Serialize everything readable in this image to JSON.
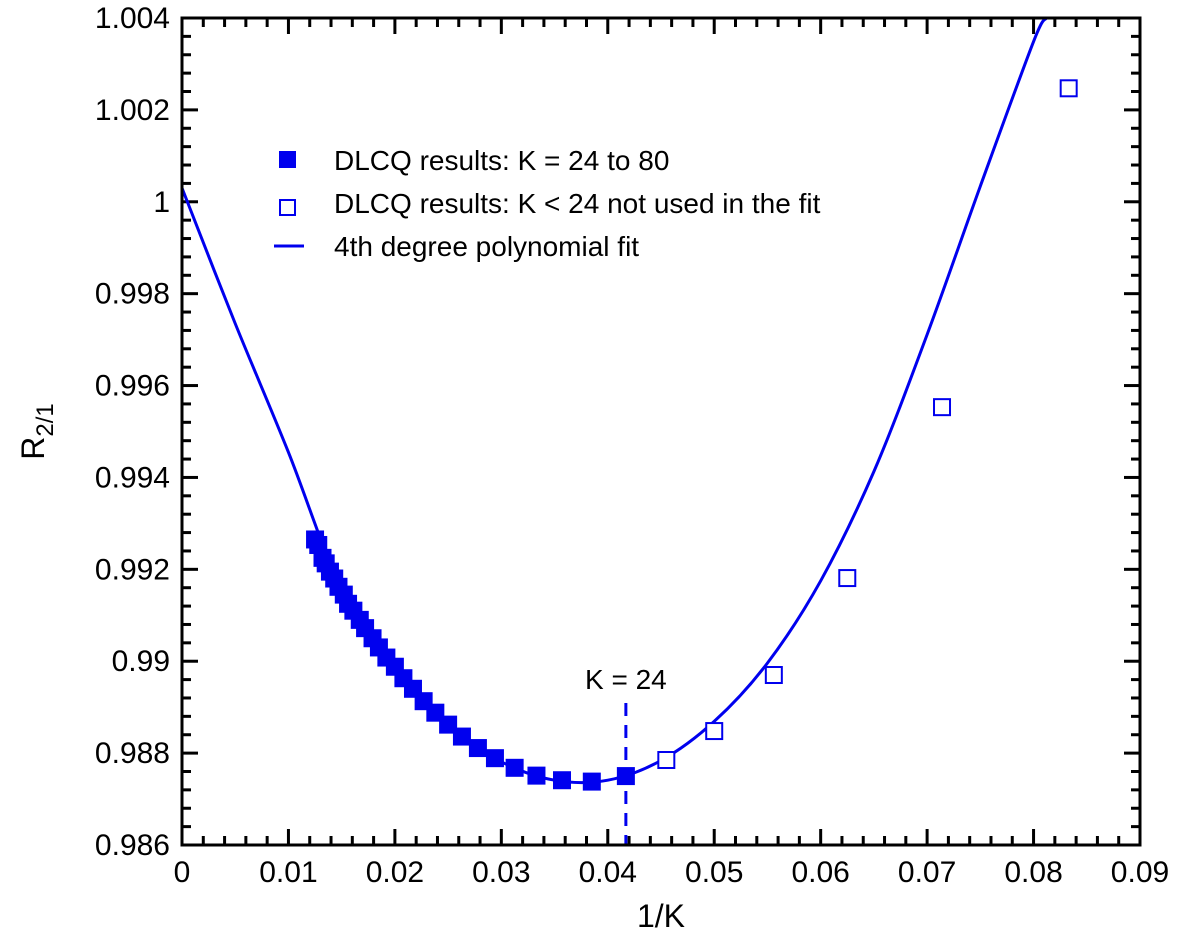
{
  "chart_data": {
    "type": "scatter",
    "xlabel": "1/K",
    "ylabel_main": "R",
    "ylabel_sub": "2/1",
    "xlim": [
      0,
      0.09
    ],
    "ylim": [
      0.986,
      1.004
    ],
    "x_ticks": [
      0,
      0.01,
      0.02,
      0.03,
      0.04,
      0.05,
      0.06,
      0.07,
      0.08,
      0.09
    ],
    "x_tick_labels": [
      "0",
      "0.01",
      "0.02",
      "0.03",
      "0.04",
      "0.05",
      "0.06",
      "0.07",
      "0.08",
      "0.09"
    ],
    "y_ticks": [
      0.986,
      0.988,
      0.99,
      0.992,
      0.994,
      0.996,
      0.998,
      1.0,
      1.002,
      1.004
    ],
    "y_tick_labels": [
      "0.986",
      "0.988",
      "0.99",
      "0.992",
      "0.994",
      "0.996",
      "0.998",
      "1",
      "1.002",
      "1.004"
    ],
    "grid": false,
    "legend_position": "top-left",
    "color": "#0000ee",
    "legend": [
      {
        "marker": "filled-square",
        "label": "DLCQ results: K = 24 to 80"
      },
      {
        "marker": "open-square",
        "label": "DLCQ results: K < 24 not used in the fit"
      },
      {
        "marker": "line",
        "label": "4th degree polynomial fit"
      }
    ],
    "series": [
      {
        "marker": "filled-square",
        "x": [
          0.0125,
          0.0128,
          0.0132,
          0.0135,
          0.0139,
          0.0143,
          0.0147,
          0.0152,
          0.0156,
          0.0161,
          0.0167,
          0.0172,
          0.0179,
          0.0185,
          0.0192,
          0.02,
          0.0208,
          0.0217,
          0.0227,
          0.0238,
          0.025,
          0.0263,
          0.0278,
          0.0294,
          0.03125,
          0.0333,
          0.0357,
          0.0385,
          0.0417
        ],
        "y": [
          0.99265,
          0.99253,
          0.99225,
          0.99213,
          0.99195,
          0.9918,
          0.99162,
          0.99145,
          0.99125,
          0.9911,
          0.9909,
          0.99072,
          0.9905,
          0.9903,
          0.99008,
          0.98988,
          0.98963,
          0.9894,
          0.98913,
          0.98888,
          0.98862,
          0.98836,
          0.98811,
          0.98789,
          0.98768,
          0.98751,
          0.98741,
          0.98738,
          0.9875
        ]
      },
      {
        "marker": "open-square",
        "x": [
          0.0455,
          0.05,
          0.0556,
          0.0625,
          0.0714,
          0.0833
        ],
        "y": [
          0.98785,
          0.98848,
          0.9897,
          0.99181,
          0.99553,
          1.00247
        ]
      }
    ],
    "fit_curve": {
      "x": [
        0,
        0.005,
        0.01,
        0.015,
        0.02,
        0.025,
        0.03,
        0.035,
        0.04,
        0.045,
        0.05,
        0.055,
        0.06,
        0.065,
        0.07,
        0.075,
        0.08,
        0.0812
      ],
      "y": [
        1.0003,
        0.99735,
        0.99455,
        0.99155,
        0.98978,
        0.98858,
        0.98781,
        0.98741,
        0.98741,
        0.98784,
        0.98869,
        0.98996,
        0.99175,
        0.99413,
        0.99711,
        1.00034,
        1.00349,
        1.004
      ]
    },
    "annotation": {
      "text": "K = 24",
      "x": 0.0417
    }
  }
}
